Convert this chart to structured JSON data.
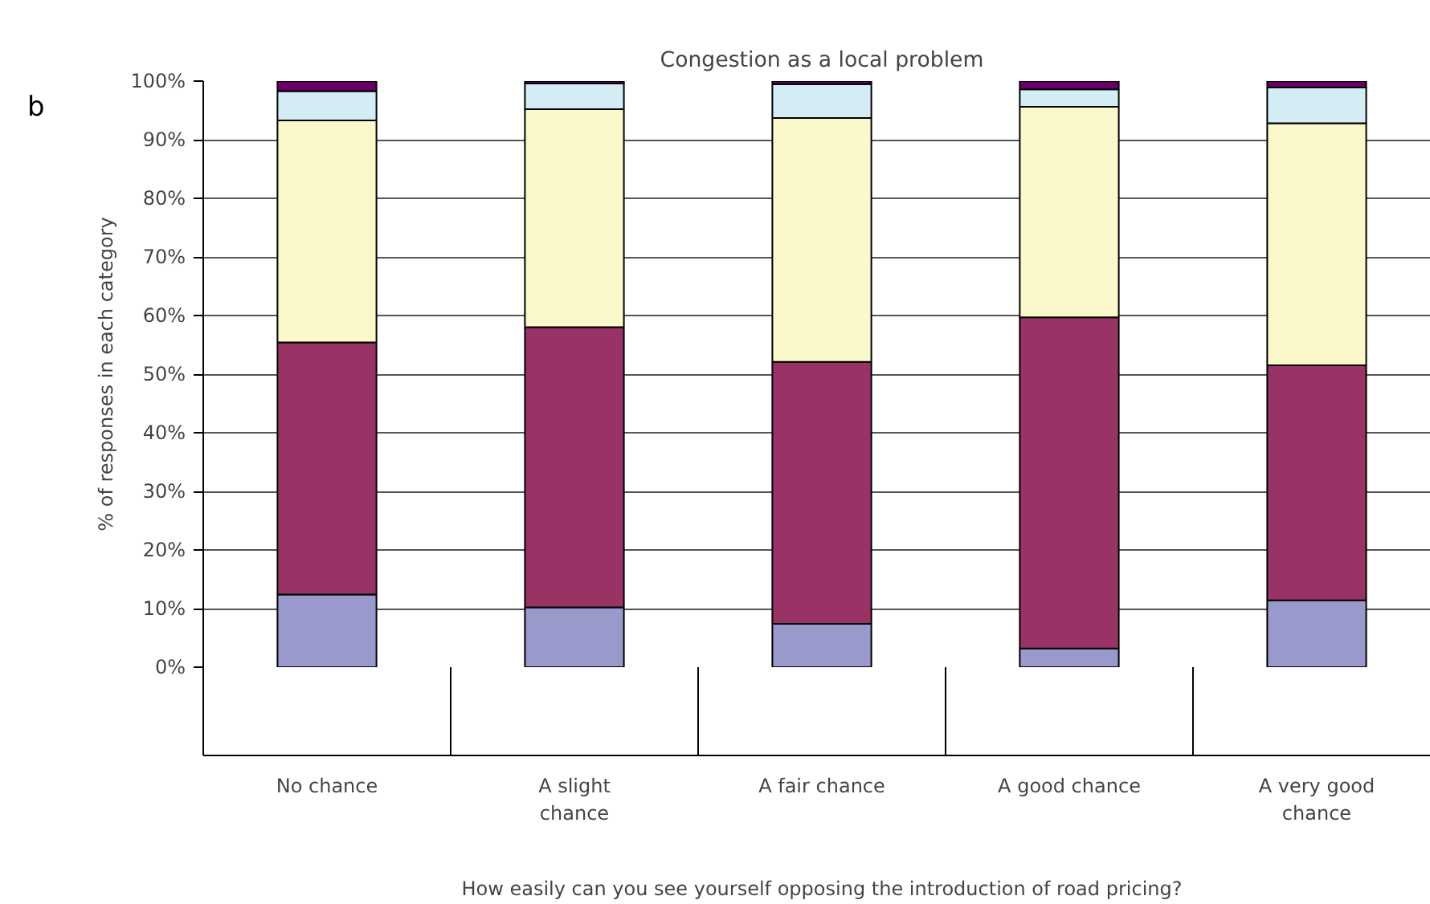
{
  "chart_data": {
    "type": "bar",
    "stacked": true,
    "title": "Congestion as a local problem",
    "xlabel": "How easily can you see yourself opposing the introduction of road pricing?",
    "ylabel": "% of responses in each category",
    "annotations": [
      "b"
    ],
    "categories": [
      "No chance",
      "A slight chance",
      "A fair chance",
      "A good chance",
      "A very good chance"
    ],
    "series": [
      {
        "color": "#9999cc",
        "values": [
          12.4,
          10.2,
          7.4,
          3.2,
          11.4
        ]
      },
      {
        "color": "#993366",
        "values": [
          43.0,
          47.8,
          44.7,
          56.5,
          40.1
        ]
      },
      {
        "color": "#fbf8cc",
        "values": [
          37.9,
          37.2,
          41.6,
          35.9,
          41.3
        ]
      },
      {
        "color": "#d4edf4",
        "values": [
          5.0,
          4.4,
          5.8,
          3.0,
          6.1
        ]
      },
      {
        "color": "#660066",
        "values": [
          1.7,
          0.4,
          0.5,
          1.4,
          1.1
        ]
      }
    ],
    "ylim": [
      0,
      100
    ],
    "yticks": [
      {
        "value": 0,
        "label": "0%"
      },
      {
        "value": 10,
        "label": "10%"
      },
      {
        "value": 20,
        "label": "20%"
      },
      {
        "value": 30,
        "label": "30%"
      },
      {
        "value": 40,
        "label": "40%"
      },
      {
        "value": 50,
        "label": "50%"
      },
      {
        "value": 60,
        "label": "60%"
      },
      {
        "value": 70,
        "label": "70%"
      },
      {
        "value": 80,
        "label": "80%"
      },
      {
        "value": 90,
        "label": "90%"
      },
      {
        "value": 100,
        "label": "100%"
      }
    ],
    "grid": "y"
  }
}
